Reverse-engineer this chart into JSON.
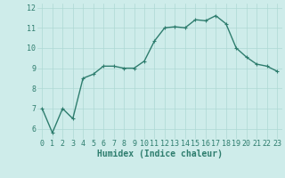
{
  "x": [
    0,
    1,
    2,
    3,
    4,
    5,
    6,
    7,
    8,
    9,
    10,
    11,
    12,
    13,
    14,
    15,
    16,
    17,
    18,
    19,
    20,
    21,
    22,
    23
  ],
  "y": [
    7.0,
    5.8,
    7.0,
    6.5,
    8.5,
    8.7,
    9.1,
    9.1,
    9.0,
    9.0,
    9.35,
    10.35,
    11.0,
    11.05,
    11.0,
    11.4,
    11.35,
    11.6,
    11.2,
    10.0,
    9.55,
    9.2,
    9.1,
    8.85
  ],
  "line_color": "#2e7d6e",
  "marker": "+",
  "marker_size": 3,
  "marker_linewidth": 0.8,
  "bg_color": "#ceecea",
  "grid_color": "#aed8d4",
  "xlabel": "Humidex (Indice chaleur)",
  "xlabel_fontsize": 7,
  "xlim": [
    -0.5,
    23.5
  ],
  "ylim": [
    5.5,
    12.2
  ],
  "yticks": [
    6,
    7,
    8,
    9,
    10,
    11,
    12
  ],
  "xticks": [
    0,
    1,
    2,
    3,
    4,
    5,
    6,
    7,
    8,
    9,
    10,
    11,
    12,
    13,
    14,
    15,
    16,
    17,
    18,
    19,
    20,
    21,
    22,
    23
  ],
  "tick_fontsize": 6,
  "line_width": 1.0
}
